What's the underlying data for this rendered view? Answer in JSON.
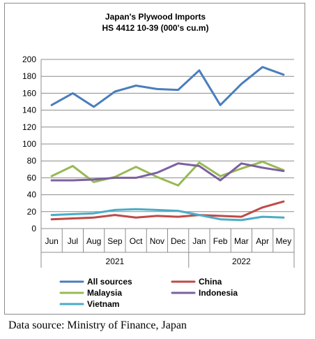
{
  "source": "Data source: Ministry of Finance, Japan",
  "chart_data": {
    "type": "line",
    "title": "Japan's Plywood Imports",
    "subtitle": "HS 4412 10-39  (000's cu.m)",
    "categories": [
      "Jun",
      "Jul",
      "Aug",
      "Sep",
      "Oct",
      "Nov",
      "Dec",
      "Jan",
      "Feb",
      "Mar",
      "Apr",
      "Mey"
    ],
    "year_groups": [
      {
        "label": "2021",
        "count": 7
      },
      {
        "label": "2022",
        "count": 5
      }
    ],
    "ylim": [
      0,
      200
    ],
    "yticks": [
      0,
      20,
      40,
      60,
      80,
      100,
      120,
      140,
      160,
      180,
      200
    ],
    "grid": true,
    "legend_position": "bottom",
    "series": [
      {
        "name": "All sources",
        "color": "#4a7ebb",
        "values": [
          146,
          160,
          144,
          162,
          169,
          165,
          164,
          187,
          146,
          171,
          191,
          182
        ]
      },
      {
        "name": "China",
        "color": "#be4b48",
        "values": [
          11,
          12,
          13,
          16,
          13,
          15,
          14,
          16,
          15,
          14,
          25,
          32
        ]
      },
      {
        "name": "Malaysia",
        "color": "#98b954",
        "values": [
          62,
          74,
          55,
          61,
          73,
          61,
          51,
          78,
          62,
          71,
          79,
          69
        ]
      },
      {
        "name": "Indonesia",
        "color": "#7d60a0",
        "values": [
          57,
          57,
          58,
          60,
          60,
          66,
          77,
          74,
          57,
          77,
          72,
          68
        ]
      },
      {
        "name": "Vietnam",
        "color": "#4bacc6",
        "values": [
          16,
          17,
          18,
          22,
          23,
          22,
          21,
          16,
          11,
          10,
          14,
          13
        ]
      }
    ]
  }
}
